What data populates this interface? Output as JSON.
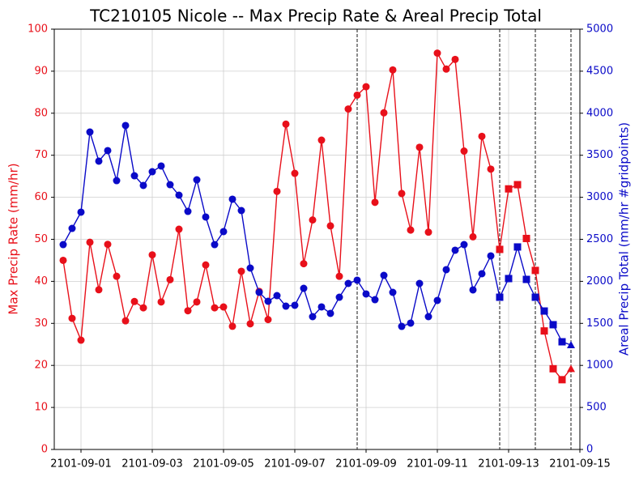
{
  "chart_data": {
    "type": "line",
    "title": "TC210105 Nicole -- Max Precip Rate & Areal Precip Total",
    "ylabel": "Max Precip Rate (mm/hr)",
    "y2label": "Areal Precip Total (mm/hr #gridpoints)",
    "x": [
      "2101-08-31T12:00",
      "2101-08-31T18:00",
      "2101-09-01T00:00",
      "2101-09-01T06:00",
      "2101-09-01T12:00",
      "2101-09-01T18:00",
      "2101-09-02T00:00",
      "2101-09-02T06:00",
      "2101-09-02T12:00",
      "2101-09-02T18:00",
      "2101-09-03T00:00",
      "2101-09-03T06:00",
      "2101-09-03T12:00",
      "2101-09-03T18:00",
      "2101-09-04T00:00",
      "2101-09-04T06:00",
      "2101-09-04T12:00",
      "2101-09-04T18:00",
      "2101-09-05T00:00",
      "2101-09-05T06:00",
      "2101-09-05T12:00",
      "2101-09-05T18:00",
      "2101-09-06T00:00",
      "2101-09-06T06:00",
      "2101-09-06T12:00",
      "2101-09-06T18:00",
      "2101-09-07T00:00",
      "2101-09-07T06:00",
      "2101-09-07T12:00",
      "2101-09-07T18:00",
      "2101-09-08T00:00",
      "2101-09-08T06:00",
      "2101-09-08T12:00",
      "2101-09-08T18:00",
      "2101-09-09T00:00",
      "2101-09-09T06:00",
      "2101-09-09T12:00",
      "2101-09-09T18:00",
      "2101-09-10T00:00",
      "2101-09-10T06:00",
      "2101-09-10T12:00",
      "2101-09-10T18:00",
      "2101-09-11T00:00",
      "2101-09-11T06:00",
      "2101-09-11T12:00",
      "2101-09-11T18:00",
      "2101-09-12T00:00",
      "2101-09-12T06:00",
      "2101-09-12T12:00",
      "2101-09-12T18:00",
      "2101-09-13T00:00",
      "2101-09-13T06:00",
      "2101-09-13T12:00",
      "2101-09-13T18:00",
      "2101-09-14T00:00",
      "2101-09-14T06:00",
      "2101-09-14T12:00",
      "2101-09-14T18:00"
    ],
    "markers": [
      "circle",
      "circle",
      "circle",
      "circle",
      "circle",
      "circle",
      "circle",
      "circle",
      "circle",
      "circle",
      "circle",
      "circle",
      "circle",
      "circle",
      "circle",
      "circle",
      "circle",
      "circle",
      "circle",
      "circle",
      "circle",
      "circle",
      "circle",
      "circle",
      "circle",
      "circle",
      "circle",
      "circle",
      "circle",
      "circle",
      "circle",
      "circle",
      "circle",
      "circle",
      "circle",
      "circle",
      "circle",
      "circle",
      "circle",
      "circle",
      "circle",
      "circle",
      "circle",
      "circle",
      "circle",
      "circle",
      "circle",
      "circle",
      "circle",
      "square",
      "square",
      "square",
      "square",
      "square",
      "square",
      "square",
      "square",
      "triangle"
    ],
    "series": [
      {
        "name": "Max Precip Rate",
        "color": "#e8101a",
        "axis": "y",
        "values": [
          45,
          31.2,
          26,
          49.3,
          38,
          48.8,
          41.2,
          30.6,
          35.2,
          33.7,
          46.3,
          35.1,
          40.4,
          52.4,
          33,
          35.1,
          43.9,
          33.7,
          33.9,
          29.3,
          42.4,
          29.9,
          37.6,
          30.9,
          61.4,
          77.4,
          65.7,
          44.2,
          54.6,
          73.6,
          53.2,
          41.2,
          81,
          84.3,
          86.3,
          58.8,
          80.1,
          90.3,
          60.9,
          52.2,
          71.9,
          51.7,
          94.3,
          90.5,
          92.8,
          71,
          50.6,
          74.5,
          66.7,
          47.6,
          62,
          63,
          50.2,
          42.6,
          28.2,
          19.2,
          16.6,
          19.2
        ]
      },
      {
        "name": "Areal Precip Total",
        "color": "#0a0ac8",
        "axis": "y2",
        "values": [
          2437,
          2630,
          2823,
          3776,
          3430,
          3555,
          3198,
          3854,
          3256,
          3141,
          3304,
          3372,
          3150,
          3025,
          2832,
          3208,
          2765,
          2437,
          2592,
          2977,
          2842,
          2158,
          1869,
          1763,
          1830,
          1705,
          1715,
          1917,
          1580,
          1696,
          1619,
          1811,
          1975,
          2014,
          1850,
          1782,
          2071,
          1869,
          1464,
          1503,
          1975,
          1580,
          1773,
          2139,
          2370,
          2437,
          1898,
          2091,
          2303,
          1811,
          2033,
          2409,
          2023,
          1811,
          1647,
          1484,
          1281,
          1243
        ]
      }
    ],
    "xlim": [
      "2101-08-31T06:00",
      "2101-09-15T00:00"
    ],
    "xticks": [
      "2101-09-01",
      "2101-09-03",
      "2101-09-05",
      "2101-09-07",
      "2101-09-09",
      "2101-09-11",
      "2101-09-13",
      "2101-09-15"
    ],
    "ylim": [
      0,
      100
    ],
    "yticks": [
      0,
      10,
      20,
      30,
      40,
      50,
      60,
      70,
      80,
      90,
      100
    ],
    "y2lim": [
      0,
      5000
    ],
    "y2ticks": [
      0,
      500,
      1000,
      1500,
      2000,
      2500,
      3000,
      3500,
      4000,
      4500,
      5000
    ],
    "vlines": [
      "2101-09-08T18:00",
      "2101-09-12T18:00",
      "2101-09-13T18:00",
      "2101-09-14T18:00"
    ],
    "grid": true
  }
}
